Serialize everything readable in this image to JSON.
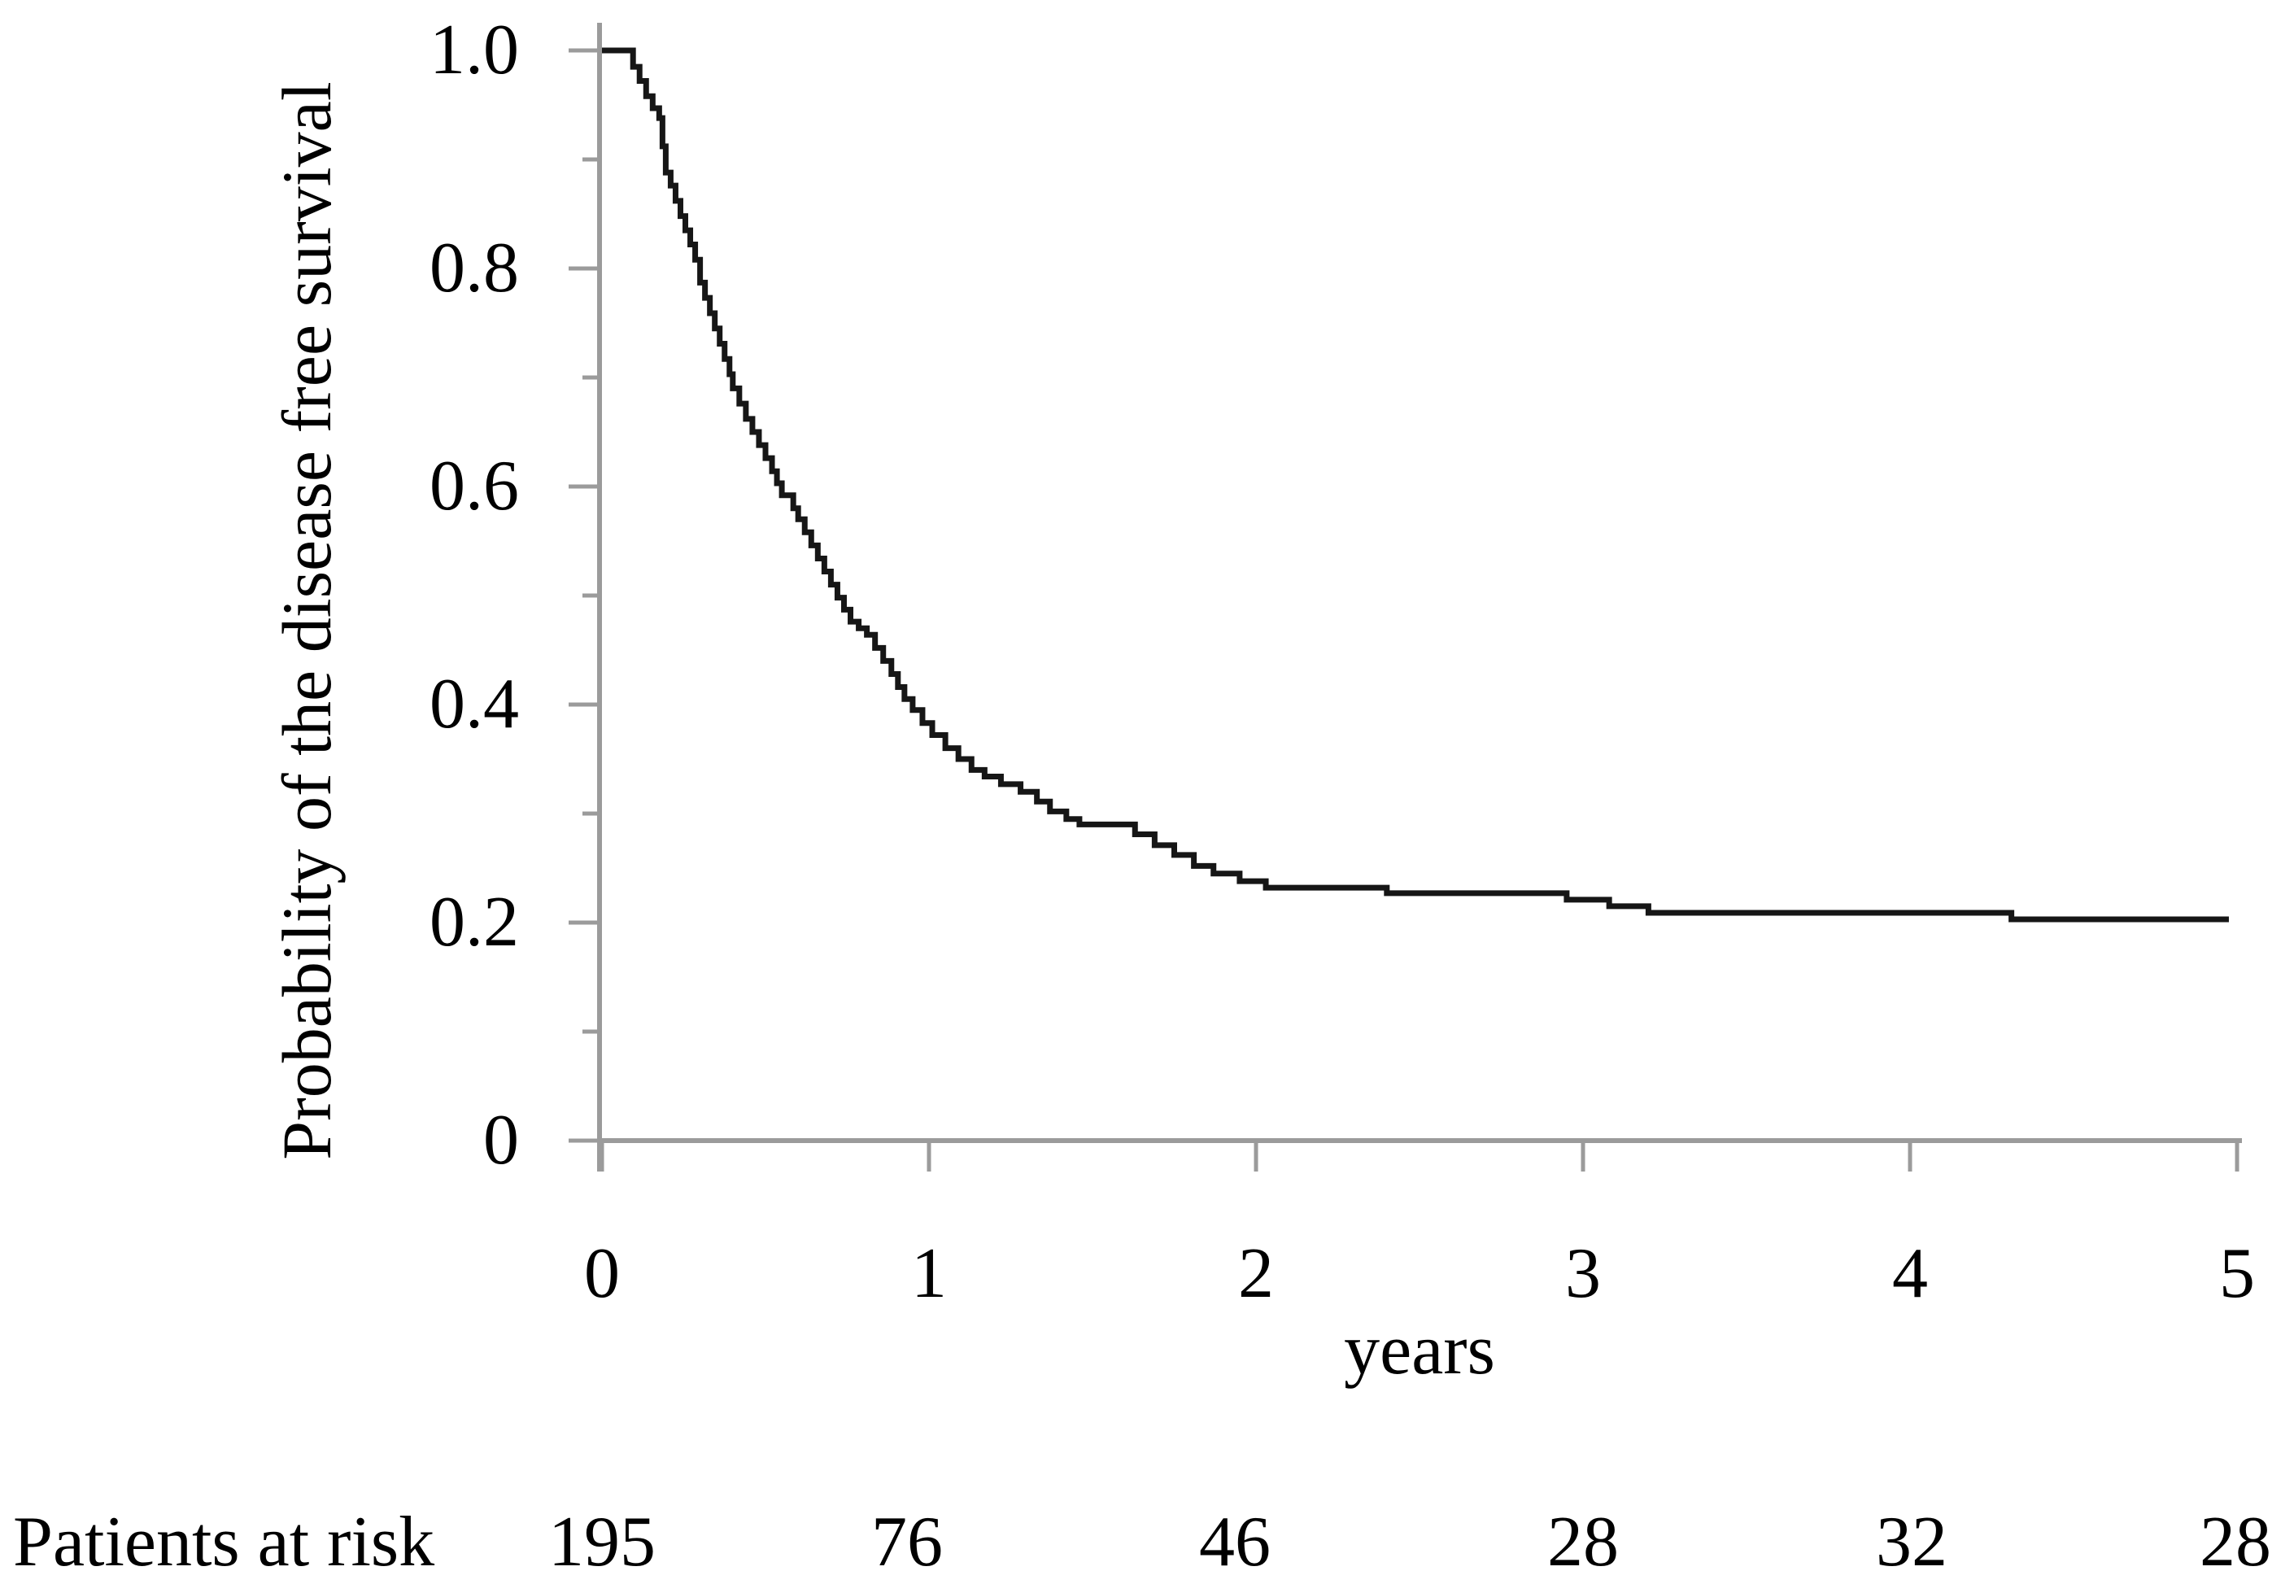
{
  "colors": {
    "background": "#ffffff",
    "axis": "#9b9b9b",
    "curve": "#161616",
    "text": "#000000"
  },
  "chart_data": {
    "type": "line",
    "subtype": "kaplan-meier-step-curve",
    "title": "",
    "xlabel": "years",
    "ylabel": "Probability of the disease free survival",
    "xlim": [
      0,
      5
    ],
    "ylim": [
      0,
      1.0
    ],
    "grid": false,
    "legend": null,
    "xticks": [
      "0",
      "1",
      "2",
      "3",
      "4",
      "5"
    ],
    "xtick_values": [
      0,
      1,
      2,
      3,
      4,
      5
    ],
    "yticks": [
      "1.0",
      "0.8",
      "0.6",
      "0.4",
      "0.2",
      "0"
    ],
    "ytick_values": [
      1.0,
      0.8,
      0.6,
      0.4,
      0.2,
      0
    ],
    "ytick_minor_values": [
      0.9,
      0.7,
      0.5,
      0.3,
      0.1
    ],
    "series": [
      {
        "name": "Disease free survival",
        "color": "#161616",
        "step": "post",
        "points": [
          [
            0,
            1.0
          ],
          [
            0.074,
            1.0
          ],
          [
            0.095,
            0.985
          ],
          [
            0.115,
            0.972
          ],
          [
            0.135,
            0.958
          ],
          [
            0.155,
            0.947
          ],
          [
            0.175,
            0.938
          ],
          [
            0.185,
            0.912
          ],
          [
            0.195,
            0.888
          ],
          [
            0.21,
            0.876
          ],
          [
            0.225,
            0.862
          ],
          [
            0.24,
            0.848
          ],
          [
            0.255,
            0.835
          ],
          [
            0.27,
            0.822
          ],
          [
            0.285,
            0.808
          ],
          [
            0.3,
            0.787
          ],
          [
            0.315,
            0.773
          ],
          [
            0.33,
            0.759
          ],
          [
            0.345,
            0.745
          ],
          [
            0.36,
            0.731
          ],
          [
            0.375,
            0.717
          ],
          [
            0.39,
            0.703
          ],
          [
            0.4,
            0.69
          ],
          [
            0.42,
            0.676
          ],
          [
            0.44,
            0.662
          ],
          [
            0.46,
            0.65
          ],
          [
            0.48,
            0.638
          ],
          [
            0.5,
            0.626
          ],
          [
            0.52,
            0.614
          ],
          [
            0.535,
            0.603
          ],
          [
            0.55,
            0.592
          ],
          [
            0.585,
            0.58
          ],
          [
            0.6,
            0.57
          ],
          [
            0.62,
            0.558
          ],
          [
            0.64,
            0.546
          ],
          [
            0.66,
            0.534
          ],
          [
            0.68,
            0.522
          ],
          [
            0.7,
            0.51
          ],
          [
            0.72,
            0.498
          ],
          [
            0.74,
            0.487
          ],
          [
            0.76,
            0.476
          ],
          [
            0.785,
            0.47
          ],
          [
            0.81,
            0.464
          ],
          [
            0.835,
            0.452
          ],
          [
            0.86,
            0.44
          ],
          [
            0.885,
            0.428
          ],
          [
            0.905,
            0.416
          ],
          [
            0.925,
            0.405
          ],
          [
            0.95,
            0.395
          ],
          [
            0.98,
            0.383
          ],
          [
            1.01,
            0.372
          ],
          [
            1.05,
            0.36
          ],
          [
            1.09,
            0.35
          ],
          [
            1.13,
            0.34
          ],
          [
            1.17,
            0.334
          ],
          [
            1.22,
            0.327
          ],
          [
            1.28,
            0.32
          ],
          [
            1.33,
            0.311
          ],
          [
            1.37,
            0.302
          ],
          [
            1.42,
            0.295
          ],
          [
            1.46,
            0.29
          ],
          [
            1.63,
            0.281
          ],
          [
            1.69,
            0.271
          ],
          [
            1.75,
            0.262
          ],
          [
            1.81,
            0.252
          ],
          [
            1.87,
            0.245
          ],
          [
            1.95,
            0.238
          ],
          [
            2.03,
            0.232
          ],
          [
            2.4,
            0.227
          ],
          [
            2.95,
            0.221
          ],
          [
            3.08,
            0.215
          ],
          [
            3.2,
            0.209
          ],
          [
            4.31,
            0.203
          ],
          [
            4.975,
            0.203
          ]
        ]
      }
    ],
    "risk_table": {
      "label": "Patients at risk",
      "times": [
        0,
        1,
        2,
        3,
        4,
        5
      ],
      "counts": [
        195,
        76,
        46,
        28,
        32,
        28
      ]
    }
  }
}
